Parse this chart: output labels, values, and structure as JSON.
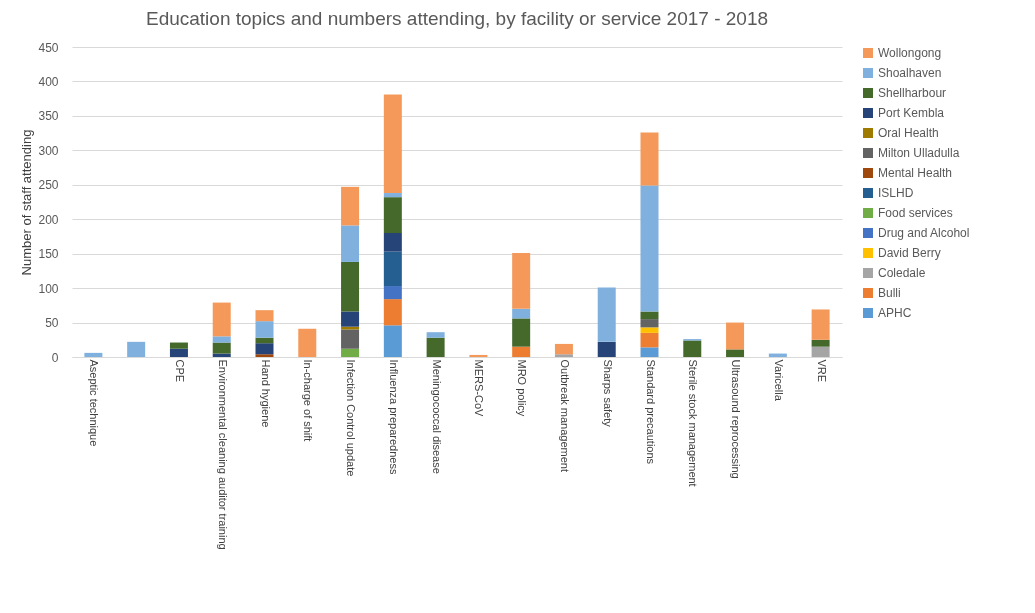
{
  "chart_data": {
    "type": "bar",
    "stacked": true,
    "title": "Education topics and numbers attending, by facility or service  2017 - 2018",
    "ylabel": "Number of staff attending",
    "categories": [
      "Aseptic technique",
      null,
      "CPE",
      "Environmental cleaning auditor training",
      "Hand hygiene",
      "In-charge of shift",
      "Infection Control update",
      "Influenza preparedness",
      "Meningococcal disease",
      "MERS-CoV",
      "MRO policy",
      "Outbreak management",
      "Sharps safety",
      "Standard precautions",
      "Sterile stock management",
      "Ultrasound reprocessing",
      "Varicella",
      "VRE"
    ],
    "ylim": [
      0,
      450
    ],
    "yticks": [
      0,
      50,
      100,
      150,
      200,
      250,
      300,
      350,
      400,
      450
    ],
    "grid": "y",
    "legend": "right",
    "series": [
      {
        "name": "APHC",
        "color": "#5b9bd5",
        "values": [
          null,
          null,
          null,
          null,
          null,
          null,
          null,
          46,
          null,
          null,
          null,
          null,
          null,
          14,
          null,
          null,
          null,
          null
        ]
      },
      {
        "name": "Bulli",
        "color": "#ed7d31",
        "values": [
          null,
          null,
          null,
          null,
          null,
          null,
          null,
          38,
          null,
          null,
          15,
          null,
          null,
          21,
          null,
          null,
          null,
          null
        ]
      },
      {
        "name": "Coledale",
        "color": "#a5a5a5",
        "values": [
          null,
          null,
          null,
          null,
          null,
          null,
          null,
          null,
          null,
          null,
          null,
          4,
          null,
          null,
          null,
          null,
          null,
          15
        ]
      },
      {
        "name": "David Berry",
        "color": "#ffc000",
        "values": [
          null,
          null,
          null,
          null,
          null,
          null,
          null,
          null,
          null,
          null,
          null,
          null,
          null,
          8,
          null,
          null,
          null,
          null
        ]
      },
      {
        "name": "Drug and Alcohol",
        "color": "#4472c4",
        "values": [
          null,
          null,
          null,
          null,
          null,
          null,
          null,
          19,
          null,
          null,
          null,
          null,
          null,
          null,
          null,
          null,
          null,
          null
        ]
      },
      {
        "name": "Food services",
        "color": "#70ad47",
        "values": [
          null,
          null,
          null,
          null,
          null,
          null,
          12,
          null,
          null,
          null,
          null,
          null,
          null,
          null,
          null,
          null,
          null,
          null
        ]
      },
      {
        "name": "ISLHD",
        "color": "#255e91",
        "values": [
          null,
          null,
          null,
          null,
          null,
          null,
          null,
          50,
          null,
          null,
          null,
          null,
          null,
          null,
          null,
          null,
          null,
          null
        ]
      },
      {
        "name": "Mental Health",
        "color": "#9e480e",
        "values": [
          null,
          null,
          null,
          null,
          4,
          null,
          null,
          null,
          null,
          null,
          null,
          null,
          null,
          null,
          null,
          null,
          null,
          null
        ]
      },
      {
        "name": "Milton Ulladulla",
        "color": "#636363",
        "values": [
          null,
          null,
          null,
          null,
          null,
          null,
          28,
          null,
          null,
          null,
          null,
          null,
          null,
          12,
          null,
          null,
          null,
          null
        ]
      },
      {
        "name": "Oral Health",
        "color": "#9e7a00",
        "values": [
          null,
          null,
          null,
          null,
          null,
          null,
          4,
          null,
          null,
          null,
          null,
          null,
          null,
          null,
          null,
          null,
          null,
          null
        ]
      },
      {
        "name": "Port Kembla",
        "color": "#264478",
        "values": [
          null,
          null,
          12,
          5,
          16,
          null,
          22,
          27,
          null,
          null,
          null,
          null,
          22,
          null,
          null,
          null,
          null,
          null
        ]
      },
      {
        "name": "Shellharbour",
        "color": "#44692b",
        "values": [
          null,
          null,
          9,
          16,
          8,
          null,
          72,
          52,
          28,
          null,
          41,
          null,
          null,
          11,
          24,
          11,
          null,
          10
        ]
      },
      {
        "name": "Shoalhaven",
        "color": "#7fb0de",
        "values": [
          6,
          22,
          null,
          9,
          24,
          null,
          53,
          6,
          8,
          null,
          14,
          null,
          79,
          183,
          2,
          null,
          5,
          null
        ]
      },
      {
        "name": "Wollongong",
        "color": "#f4995a",
        "values": [
          null,
          null,
          null,
          49,
          16,
          41,
          56,
          143,
          null,
          3,
          81,
          15,
          null,
          77,
          null,
          39,
          null,
          44
        ]
      }
    ]
  }
}
